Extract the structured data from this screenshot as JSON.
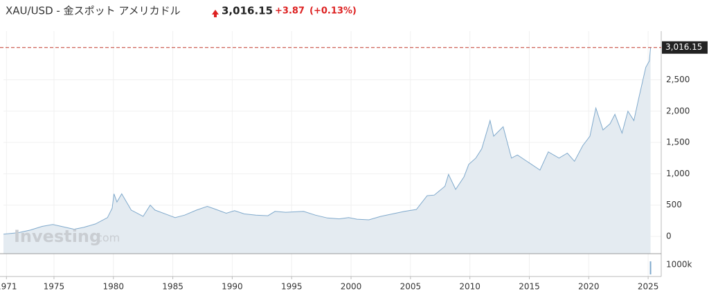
{
  "chart_data": {
    "type": "area",
    "title": "XAU/USD - 金スポット アメリカドル",
    "current": {
      "value": 3016.15,
      "label": "3,016.15"
    },
    "change": "+3.87",
    "change_pct": "(+0.13%)",
    "watermark_brand": "Investing",
    "watermark_suffix": ".com",
    "grid": true,
    "xlim": [
      1970.75,
      2026.1
    ],
    "ylim": [
      -276,
      3278
    ],
    "xticks": [
      1971,
      1975,
      1980,
      1985,
      1990,
      1995,
      2000,
      2005,
      2010,
      2015,
      2020,
      2025
    ],
    "yticks": [
      0,
      500,
      {
        "value": 1000,
        "label": "1,000"
      },
      {
        "value": 1500,
        "label": "1,500"
      },
      {
        "value": 2000,
        "label": "2,000"
      },
      {
        "value": 2500,
        "label": "2,500"
      }
    ],
    "series": [
      {
        "color": "#7fa9cc",
        "x": [
          1970.75,
          1972,
          1973,
          1974,
          1974.9,
          1975.5,
          1976.7,
          1977.5,
          1978.5,
          1979.5,
          1979.9,
          1980.05,
          1980.3,
          1980.7,
          1981.5,
          1982.5,
          1983.1,
          1983.5,
          1984.5,
          1985.2,
          1986,
          1987,
          1987.9,
          1988.5,
          1989.5,
          1990.2,
          1991,
          1992,
          1993,
          1993.6,
          1994.5,
          1996,
          1997,
          1998,
          1999,
          1999.8,
          2000.5,
          2001.5,
          2002.5,
          2003.5,
          2004.5,
          2005.5,
          2006.4,
          2007,
          2007.9,
          2008.2,
          2008.8,
          2009.5,
          2009.9,
          2010.5,
          2011,
          2011.7,
          2012,
          2012.8,
          2013.5,
          2014,
          2015.9,
          2016.6,
          2017.5,
          2018.2,
          2018.8,
          2019.5,
          2020.1,
          2020.6,
          2021.2,
          2021.8,
          2022.2,
          2022.8,
          2023.3,
          2023.8,
          2024.2,
          2024.8,
          2025.1,
          2025.2
        ],
        "values": [
          36,
          60,
          100,
          160,
          190,
          165,
          115,
          145,
          200,
          300,
          450,
          680,
          550,
          680,
          420,
          320,
          500,
          420,
          350,
          300,
          340,
          420,
          480,
          440,
          370,
          410,
          360,
          340,
          330,
          400,
          385,
          400,
          340,
          295,
          280,
          300,
          275,
          265,
          320,
          360,
          400,
          430,
          650,
          660,
          800,
          990,
          750,
          950,
          1150,
          1250,
          1400,
          1850,
          1600,
          1750,
          1250,
          1300,
          1060,
          1350,
          1250,
          1330,
          1200,
          1450,
          1600,
          2050,
          1700,
          1800,
          1950,
          1650,
          2000,
          1850,
          2200,
          2700,
          2800,
          3016.15
        ]
      }
    ],
    "volume": {
      "x": [
        2025.2
      ],
      "values": [
        1360000
      ],
      "ylim": [
        0,
        1800000
      ],
      "yticks": [
        {
          "value": 1000000,
          "label": "1000k"
        }
      ]
    }
  }
}
